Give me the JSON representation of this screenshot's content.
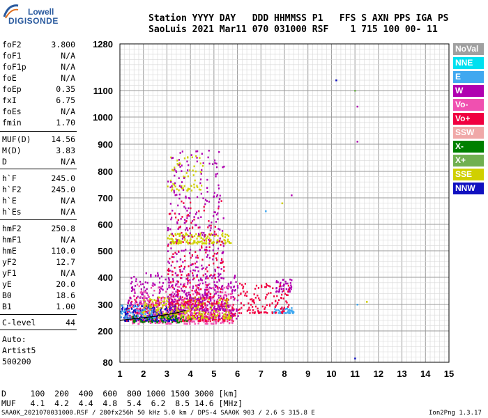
{
  "logo": {
    "line1": "Lowell",
    "line2": "DIGISONDE"
  },
  "header": {
    "labels": "Station YYYY DAY   DDD HHMMSS P1   FFS S AXN PPS IGA PS",
    "values": "SaoLuis 2021 Mar11 070 031000 RSF    1 715 100 00- 11"
  },
  "params_a": [
    {
      "name": "foF2",
      "value": "3.800"
    },
    {
      "name": "foF1",
      "value": "N/A"
    },
    {
      "name": "foF1p",
      "value": "N/A"
    },
    {
      "name": "foE",
      "value": "N/A"
    },
    {
      "name": "foEp",
      "value": "0.35"
    },
    {
      "name": "fxI",
      "value": "6.75"
    },
    {
      "name": "foEs",
      "value": "N/A"
    },
    {
      "name": "fmin",
      "value": "1.70"
    }
  ],
  "params_b": [
    {
      "name": "MUF(D)",
      "value": "14.56"
    },
    {
      "name": "M(D)",
      "value": "3.83"
    },
    {
      "name": "D",
      "value": "N/A"
    }
  ],
  "params_c": [
    {
      "name": "h`F",
      "value": "245.0"
    },
    {
      "name": "h`F2",
      "value": "245.0"
    },
    {
      "name": "h`E",
      "value": "N/A"
    },
    {
      "name": "h`Es",
      "value": "N/A"
    }
  ],
  "params_d": [
    {
      "name": "hmF2",
      "value": "250.8"
    },
    {
      "name": "hmF1",
      "value": "N/A"
    },
    {
      "name": "hmE",
      "value": "110.0"
    },
    {
      "name": "yF2",
      "value": "12.7"
    },
    {
      "name": "yF1",
      "value": "N/A"
    },
    {
      "name": "yE",
      "value": "20.0"
    },
    {
      "name": "B0",
      "value": "18.6"
    },
    {
      "name": "B1",
      "value": "1.00"
    }
  ],
  "clevel": {
    "name": "C-level",
    "value": "44"
  },
  "auto": [
    "Auto:",
    "Artist5",
    "500200"
  ],
  "bottom_table": {
    "d_row": "D     100  200  400  600  800 1000 1500 3000 [km]",
    "muf_row": "MUF   4.1  4.2  4.4  4.8  5.4  6.2  8.5 14.6 [MHz]"
  },
  "footer": {
    "left": "SAA0K_2021070031000.RSF / 280fx256h 50 kHz 5.0 km / DPS-4 SAA0K 903 / 2.6 S 315.8 E",
    "right": "Ion2Png 1.3.17"
  },
  "legend": [
    {
      "label": "NoVal",
      "color": "#a0a0a0"
    },
    {
      "label": "NNE",
      "color": "#00e0f0"
    },
    {
      "label": "E",
      "color": "#40a8f0"
    },
    {
      "label": "W",
      "color": "#b000b0"
    },
    {
      "label": "Vo-",
      "color": "#f050b0"
    },
    {
      "label": "Vo+",
      "color": "#f00040"
    },
    {
      "label": "SSW",
      "color": "#f0a8a8"
    },
    {
      "label": "X-",
      "color": "#008000"
    },
    {
      "label": "X+",
      "color": "#70b050"
    },
    {
      "label": "SSE",
      "color": "#d0d000"
    },
    {
      "label": "NNW",
      "color": "#1010c0"
    }
  ],
  "chart_data": {
    "type": "scatter",
    "x_ticks": [
      1,
      2,
      3,
      4,
      5,
      6,
      7,
      8,
      9,
      10,
      11,
      12,
      13,
      14,
      15
    ],
    "y_ticks": [
      80,
      200,
      300,
      400,
      500,
      600,
      700,
      800,
      900,
      1000,
      1100,
      1280
    ],
    "xlim": [
      1,
      15
    ],
    "ylim": [
      80,
      1280
    ],
    "grid": true,
    "clusters": [
      {
        "color": "#f00040",
        "x": [
          1.2,
          5.9
        ],
        "y": [
          240,
          330
        ],
        "n": 420
      },
      {
        "color": "#b000b0",
        "x": [
          1.3,
          6.0
        ],
        "y": [
          250,
          420
        ],
        "n": 420
      },
      {
        "color": "#f050b0",
        "x": [
          1.5,
          5.8
        ],
        "y": [
          230,
          380
        ],
        "n": 300
      },
      {
        "color": "#1010c0",
        "x": [
          1.0,
          3.4
        ],
        "y": [
          240,
          300
        ],
        "n": 160
      },
      {
        "color": "#d0d000",
        "x": [
          1.9,
          5.7
        ],
        "y": [
          250,
          330
        ],
        "n": 220
      },
      {
        "color": "#d0d000",
        "x": [
          3.0,
          5.7
        ],
        "y": [
          530,
          570
        ],
        "n": 140
      },
      {
        "color": "#d0d000",
        "x": [
          3.0,
          4.5
        ],
        "y": [
          730,
          860
        ],
        "n": 60
      },
      {
        "color": "#b000b0",
        "x": [
          3.0,
          5.4
        ],
        "y": [
          280,
          880
        ],
        "n": 380
      },
      {
        "color": "#f00040",
        "x": [
          3.0,
          5.4
        ],
        "y": [
          300,
          700
        ],
        "n": 180
      },
      {
        "color": "#40a8f0",
        "x": [
          7.5,
          8.4
        ],
        "y": [
          270,
          290
        ],
        "n": 40
      },
      {
        "color": "#b000b0",
        "x": [
          7.6,
          8.3
        ],
        "y": [
          350,
          400
        ],
        "n": 40
      },
      {
        "color": "#f00040",
        "x": [
          6.0,
          8.2
        ],
        "y": [
          270,
          380
        ],
        "n": 120
      },
      {
        "color": "#40a8f0",
        "x": [
          1.0,
          2.5
        ],
        "y": [
          250,
          300
        ],
        "n": 60
      },
      {
        "color": "#008000",
        "x": [
          1.5,
          4.0
        ],
        "y": [
          235,
          260
        ],
        "n": 50
      }
    ],
    "isolated_points": [
      {
        "x": 10.2,
        "y": 1140,
        "color": "#1010c0"
      },
      {
        "x": 11.0,
        "y": 1100,
        "color": "#70b050"
      },
      {
        "x": 11.1,
        "y": 1040,
        "color": "#b000b0"
      },
      {
        "x": 11.1,
        "y": 910,
        "color": "#b000b0"
      },
      {
        "x": 11.0,
        "y": 95,
        "color": "#1010c0"
      },
      {
        "x": 11.1,
        "y": 300,
        "color": "#40a8f0"
      },
      {
        "x": 11.5,
        "y": 310,
        "color": "#d0d000"
      },
      {
        "x": 7.2,
        "y": 650,
        "color": "#40a8f0"
      },
      {
        "x": 8.3,
        "y": 710,
        "color": "#b000b0"
      },
      {
        "x": 7.9,
        "y": 680,
        "color": "#d0d000"
      }
    ],
    "trace": {
      "color": "#000000",
      "x": [
        1.0,
        1.5,
        2.0,
        2.5,
        3.0,
        3.5,
        3.8
      ],
      "y": [
        240,
        245,
        250,
        255,
        262,
        270,
        278
      ]
    }
  }
}
